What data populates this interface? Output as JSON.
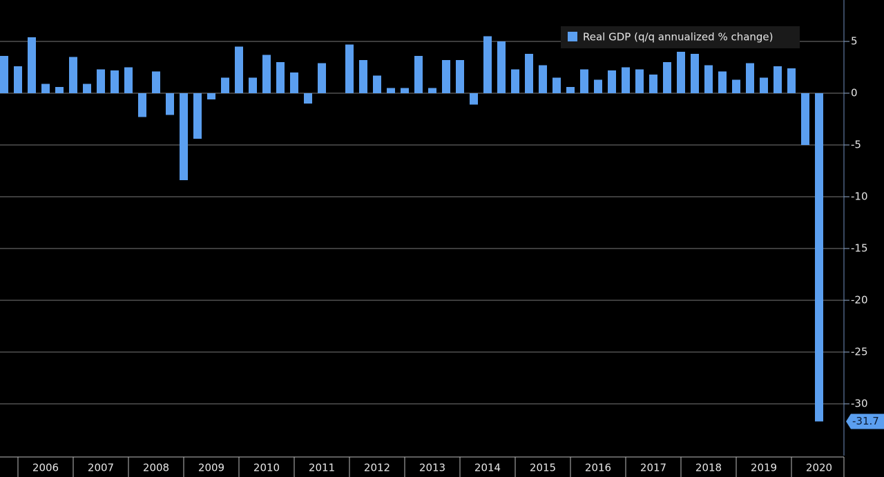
{
  "chart_data": {
    "type": "bar",
    "categories": [
      null,
      null,
      null,
      null,
      null,
      null,
      null,
      null,
      null,
      null,
      null,
      null,
      null,
      null,
      null,
      null,
      null,
      null,
      null,
      null,
      null,
      null,
      null,
      null,
      null,
      null,
      null,
      null,
      null,
      null,
      null,
      null,
      null,
      null,
      null,
      null,
      null,
      null,
      null,
      null,
      null,
      null,
      null,
      null,
      null,
      null,
      null,
      null,
      null,
      null,
      null,
      null,
      null,
      null,
      null,
      null,
      null,
      null,
      null,
      null
    ],
    "years": [
      "2006",
      "2007",
      "2008",
      "2009",
      "2010",
      "2011",
      "2012",
      "2013",
      "2014",
      "2015",
      "2016",
      "2017",
      "2018",
      "2019",
      "2020"
    ],
    "series": [
      {
        "name": "Real GDP (q/q annualized % change)",
        "color": "#5b9ff0",
        "values": [
          3.6,
          2.6,
          5.4,
          0.9,
          0.6,
          3.5,
          0.9,
          2.3,
          2.2,
          2.5,
          -2.3,
          2.1,
          -2.1,
          -8.4,
          -4.4,
          -0.6,
          1.5,
          4.5,
          1.5,
          3.7,
          3.0,
          2.0,
          -1.0,
          2.9,
          0.0,
          4.7,
          3.2,
          1.7,
          0.5,
          0.5,
          3.6,
          0.5,
          3.2,
          3.2,
          -1.1,
          5.5,
          5.0,
          2.3,
          3.8,
          2.7,
          1.5,
          0.6,
          2.3,
          1.3,
          2.2,
          2.5,
          2.3,
          1.8,
          3.0,
          4.0,
          3.8,
          2.7,
          2.1,
          1.3,
          2.9,
          1.5,
          2.6,
          2.4,
          -5.0,
          -31.7
        ]
      }
    ],
    "last_value_label": true,
    "ylim": [
      -35,
      9
    ],
    "yticks": [
      5,
      0,
      -5,
      -10,
      -15,
      -20,
      -25,
      -30
    ],
    "grid": true,
    "legend": "top-right"
  }
}
